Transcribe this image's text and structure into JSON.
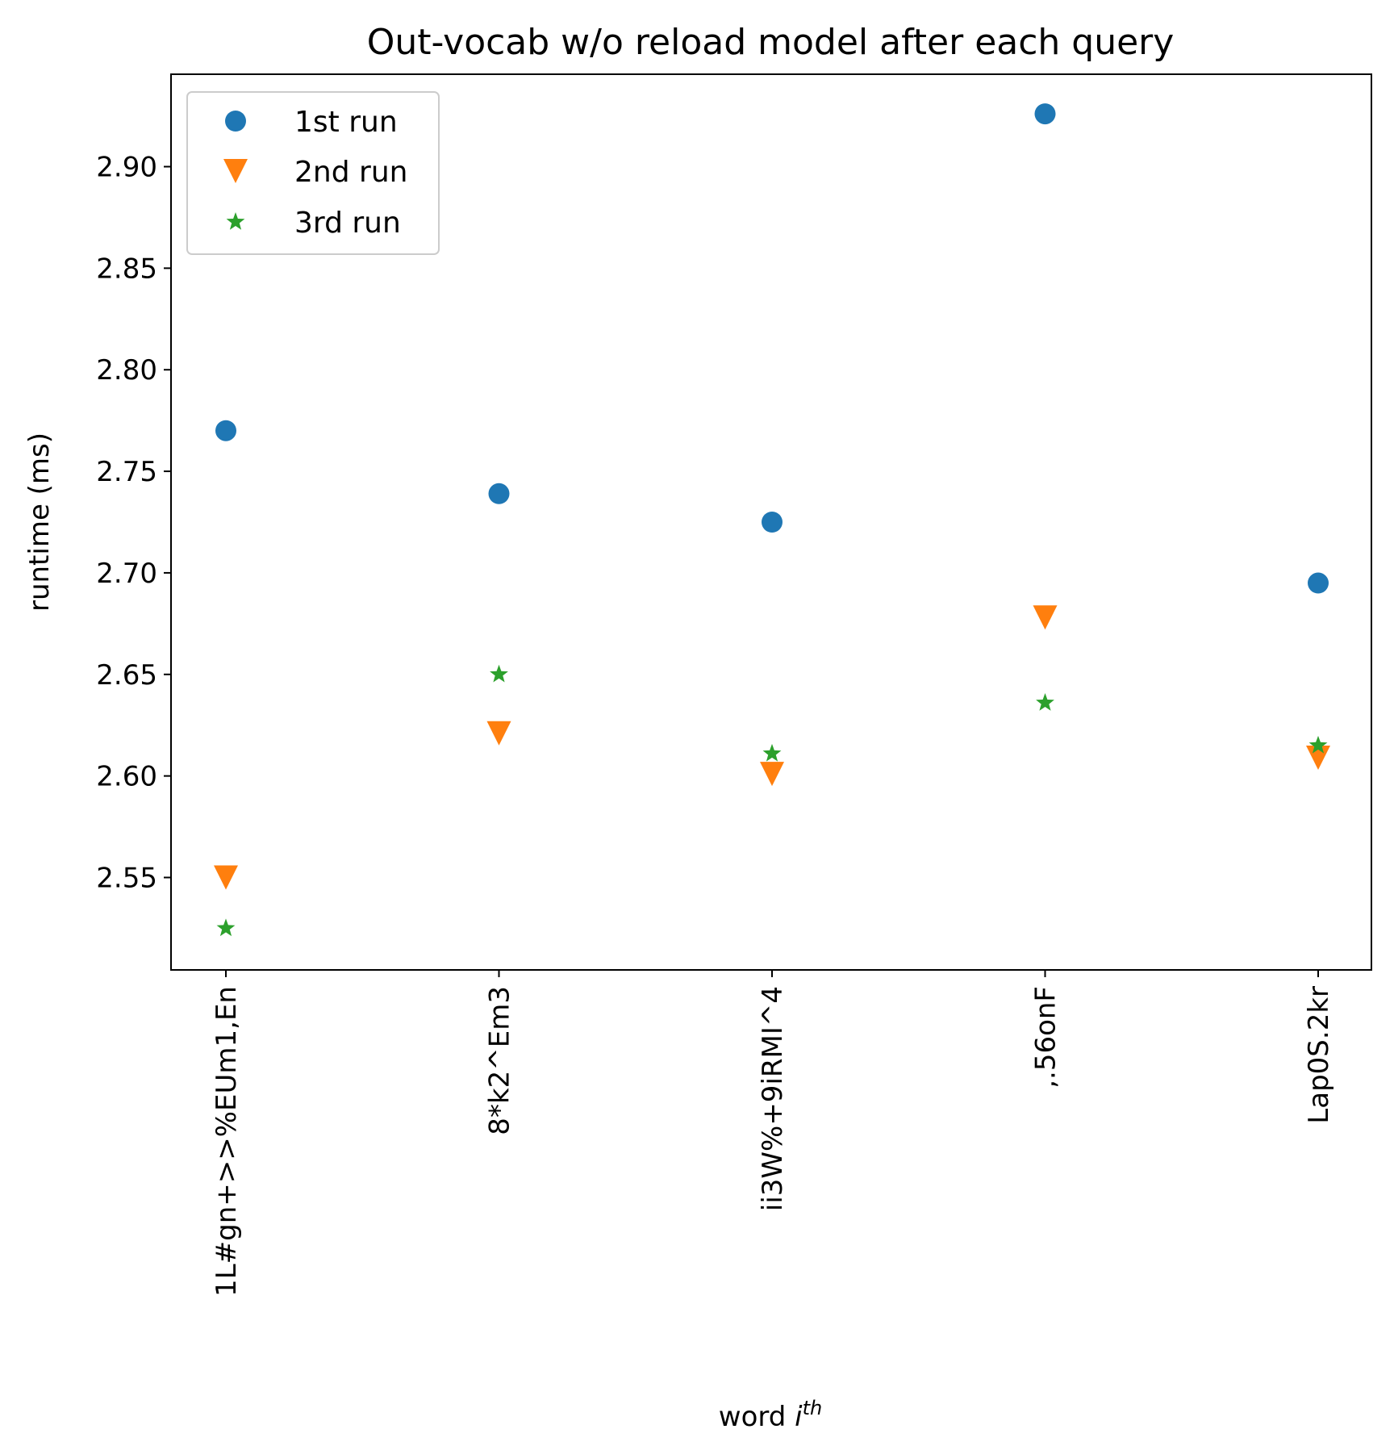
{
  "chart_data": {
    "type": "scatter",
    "title": "Out-vocab w/o reload model after each query",
    "xlabel_main": "word ",
    "xlabel_italic": "i",
    "xlabel_sup": "th",
    "ylabel": "runtime (ms)",
    "categories": [
      "1L#gn+>>%EUm1,En",
      "8*k2^Em3",
      "ii3W%+9iRMI^4",
      ",.56onF",
      "Lap0S.2kr"
    ],
    "ylim": [
      2.5045,
      2.9455
    ],
    "yticks": [
      2.55,
      2.6,
      2.65,
      2.7,
      2.75,
      2.8,
      2.85,
      2.9
    ],
    "ytick_labels": [
      "2.55",
      "2.60",
      "2.65",
      "2.70",
      "2.75",
      "2.80",
      "2.85",
      "2.90"
    ],
    "grid": false,
    "legend_position": "top-left",
    "series": [
      {
        "name": "1st run",
        "marker": "circle",
        "color": "#1f77b4",
        "values": [
          2.77,
          2.739,
          2.725,
          2.926,
          2.695
        ]
      },
      {
        "name": "2nd run",
        "marker": "triangle-down",
        "color": "#ff7f0e",
        "values": [
          2.55,
          2.621,
          2.601,
          2.678,
          2.609
        ]
      },
      {
        "name": "3rd run",
        "marker": "star",
        "color": "#2ca02c",
        "values": [
          2.525,
          2.65,
          2.611,
          2.636,
          2.615
        ]
      }
    ]
  }
}
